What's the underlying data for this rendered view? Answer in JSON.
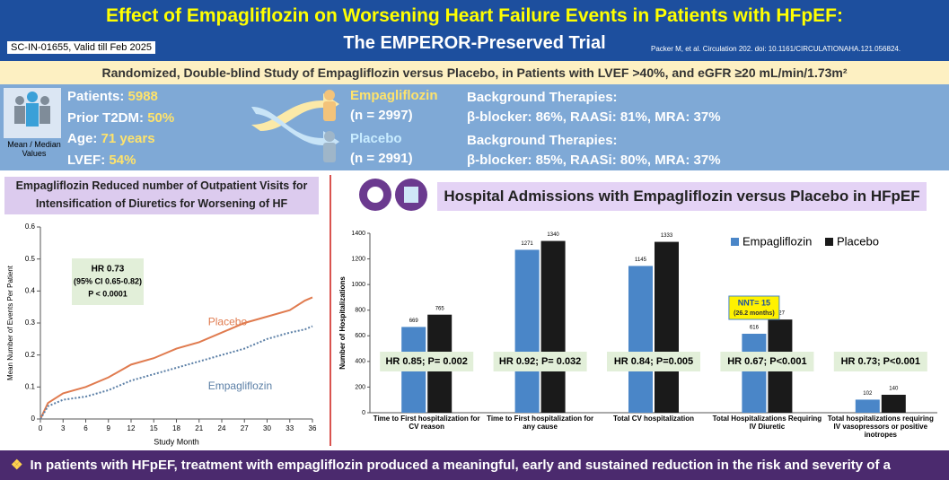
{
  "header": {
    "title": [
      "Effect of Empagliflozin on Worsening Heart Failure Events in Patients with HFpEF:",
      "The EMPEROR-Preserved Trial"
    ],
    "code": "SC-IN-01655, Valid till Feb 2025",
    "citation": "Packer M, et al. Circulation 202. doi: 10.1161/CIRCULATIONAHA.121.056824."
  },
  "study_design": "Randomized, Double-blind Study of Empagliflozin versus Placebo, in Patients with LVEF >40%, and eGFR ≥20 mL/min/1.73m²",
  "baseline": {
    "items": [
      {
        "label": "Patients:",
        "value": "5988"
      },
      {
        "label": "Prior T2DM:",
        "value": "50%"
      },
      {
        "label": "Age:",
        "value": "71 years"
      },
      {
        "label": "LVEF:",
        "value": "54%"
      }
    ],
    "caption": "Mean / Median Values"
  },
  "arms": [
    {
      "name": "Empagliflozin",
      "n": "(n = 2997)",
      "therapies_title": "Background Therapies:",
      "therapies": "β-blocker: 86%, RAASi: 81%, MRA: 37%"
    },
    {
      "name": "Placebo",
      "n": "(n = 2991)",
      "therapies_title": "Background Therapies:",
      "therapies": "β-blocker: 85%, RAASi: 80%, MRA: 37%"
    }
  ],
  "chart_data": [
    {
      "type": "line",
      "title": "Empagliflozin Reduced number of Outpatient Visits for Intensification of Diuretics for Worsening of HF",
      "xlabel": "Study Month",
      "ylabel": "Mean Number of Events Per Patient",
      "x": [
        0,
        1,
        3,
        6,
        9,
        12,
        15,
        18,
        21,
        24,
        27,
        30,
        33,
        35,
        36
      ],
      "series": [
        {
          "name": "Placebo",
          "color": "#e07b4f",
          "values": [
            0,
            0.05,
            0.08,
            0.1,
            0.13,
            0.17,
            0.19,
            0.22,
            0.24,
            0.27,
            0.3,
            0.32,
            0.34,
            0.37,
            0.38
          ]
        },
        {
          "name": "Empagliflozin",
          "color": "#5b7fa6",
          "values": [
            0,
            0.04,
            0.06,
            0.07,
            0.09,
            0.12,
            0.14,
            0.16,
            0.18,
            0.2,
            0.22,
            0.25,
            0.27,
            0.28,
            0.29
          ]
        }
      ],
      "xlim": [
        0,
        36
      ],
      "xticks": [
        0,
        3,
        6,
        9,
        12,
        15,
        18,
        21,
        24,
        27,
        30,
        33,
        36
      ],
      "ylim": [
        0,
        0.6
      ],
      "yticks": [
        0,
        0.1,
        0.2,
        0.3,
        0.4,
        0.5,
        0.6
      ],
      "annotation": [
        "HR 0.73",
        "(95% CI 0.65-0.82)",
        "P < 0.0001"
      ]
    },
    {
      "type": "bar",
      "title": "Hospital Admissions with Empagliflozin versus Placebo in HFpEF",
      "ylabel": "Number of Hospitalizations",
      "categories": [
        "Time to First hospitalization for CV reason",
        "Time to First hospitalization for any cause",
        "Total CV hospitalization",
        "Total Hospitalizations Requiring IV Diuretic",
        "Total hospitalizations requiring IV vasopressors or positive inotropes"
      ],
      "series": [
        {
          "name": "Empagliflozin",
          "color": "#4a86c8",
          "values": [
            669,
            1271,
            1145,
            616,
            102
          ]
        },
        {
          "name": "Placebo",
          "color": "#1a1a1a",
          "values": [
            765,
            1340,
            1333,
            727,
            140
          ]
        }
      ],
      "ylim": [
        0,
        1400
      ],
      "yticks": [
        0,
        200,
        400,
        600,
        800,
        1000,
        1200,
        1400
      ],
      "legend": "upper right",
      "hr_labels": [
        "HR 0.85; P= 0.002",
        "HR 0.92; P= 0.032",
        "HR 0.84; P=0.005",
        "HR 0.67; P<0.001",
        "HR 0.73; P<0.001"
      ],
      "callout": [
        "NNT= 15",
        "(26.2 months)"
      ]
    }
  ],
  "footer": {
    "bullet": "❖",
    "text": "In patients with HFpEF, treatment with empagliflozin produced a meaningful, early and sustained reduction in the risk and severity of a"
  }
}
